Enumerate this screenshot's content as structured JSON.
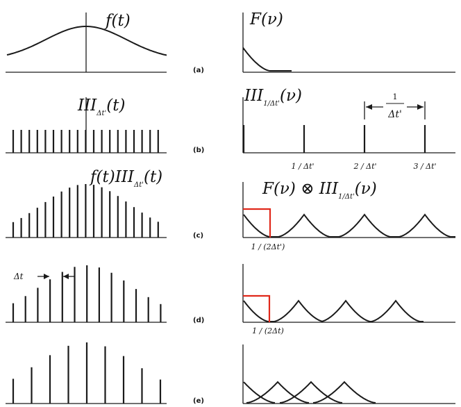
{
  "panels": {
    "a": {
      "label": "(a)",
      "left_title": {
        "main": "f(t)"
      },
      "right_title": {
        "main": "F(ν)"
      }
    },
    "b": {
      "label": "(b)",
      "left_title": {
        "main": "III",
        "sub": "Δt'",
        "tail": "(t)"
      },
      "right_title": {
        "main": "III",
        "sub": "1/Δt'",
        "tail": "(ν)"
      },
      "spacing_num": "1",
      "spacing_den": "Δt'",
      "ticks": [
        "1 / Δt'",
        "2 / Δt'",
        "3 / Δt'"
      ]
    },
    "c": {
      "label": "(c)",
      "left_title": {
        "pre": "f(t)III",
        "sub": "Δt'",
        "tail": "(t)"
      },
      "right_title": {
        "pre": "F(ν) ⊗ III",
        "sub": "1/Δt'",
        "tail": "(ν)"
      },
      "cut_label": "1 / (2Δt')"
    },
    "d": {
      "label": "(d)",
      "dt_label": "Δt",
      "cut_label": "1 / (2Δt)"
    },
    "e": {
      "label": "(e)"
    }
  },
  "colors": {
    "ink": "#1a1a1a",
    "highlight": "#e0281a",
    "background": "#ffffff"
  }
}
